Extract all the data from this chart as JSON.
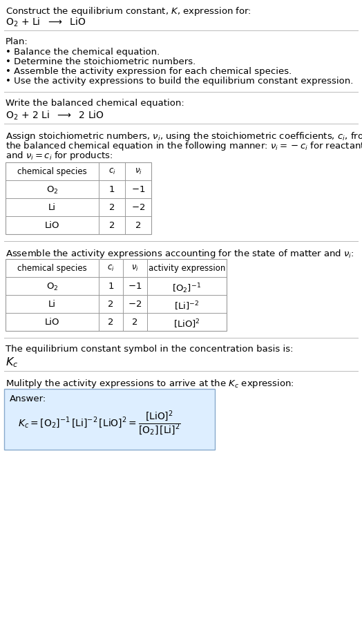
{
  "title_line1": "Construct the equilibrium constant, $K$, expression for:",
  "title_line2": "$\\mathrm{O_2}$ + Li  $\\longrightarrow$  LiO",
  "plan_header": "Plan:",
  "plan_bullets": [
    "• Balance the chemical equation.",
    "• Determine the stoichiometric numbers.",
    "• Assemble the activity expression for each chemical species.",
    "• Use the activity expressions to build the equilibrium constant expression."
  ],
  "balanced_header": "Write the balanced chemical equation:",
  "balanced_eq": "$\\mathrm{O_2}$ + 2 Li  $\\longrightarrow$  2 LiO",
  "stoich_intro_lines": [
    "Assign stoichiometric numbers, $\\nu_i$, using the stoichiometric coefficients, $c_i$, from",
    "the balanced chemical equation in the following manner: $\\nu_i = -c_i$ for reactants",
    "and $\\nu_i = c_i$ for products:"
  ],
  "table1_headers": [
    "chemical species",
    "$c_i$",
    "$\\nu_i$"
  ],
  "table1_rows": [
    [
      "$\\mathrm{O_2}$",
      "1",
      "$-1$"
    ],
    [
      "Li",
      "2",
      "$-2$"
    ],
    [
      "LiO",
      "2",
      "2"
    ]
  ],
  "activity_intro": "Assemble the activity expressions accounting for the state of matter and $\\nu_i$:",
  "table2_headers": [
    "chemical species",
    "$c_i$",
    "$\\nu_i$",
    "activity expression"
  ],
  "table2_rows": [
    [
      "$\\mathrm{O_2}$",
      "1",
      "$-1$",
      "$[\\mathrm{O_2}]^{-1}$"
    ],
    [
      "Li",
      "2",
      "$-2$",
      "$[\\mathrm{Li}]^{-2}$"
    ],
    [
      "LiO",
      "2",
      "2",
      "$[\\mathrm{LiO}]^{2}$"
    ]
  ],
  "kc_header": "The equilibrium constant symbol in the concentration basis is:",
  "kc_symbol": "$K_c$",
  "multiply_header": "Mulitply the activity expressions to arrive at the $K_c$ expression:",
  "answer_label": "Answer:",
  "bg_color": "#ffffff",
  "table_border_color": "#999999",
  "answer_box_color": "#ddeeff",
  "answer_box_border": "#88aacc",
  "text_color": "#000000",
  "font_size": 9.5,
  "line_sep_color": "#bbbbbb"
}
